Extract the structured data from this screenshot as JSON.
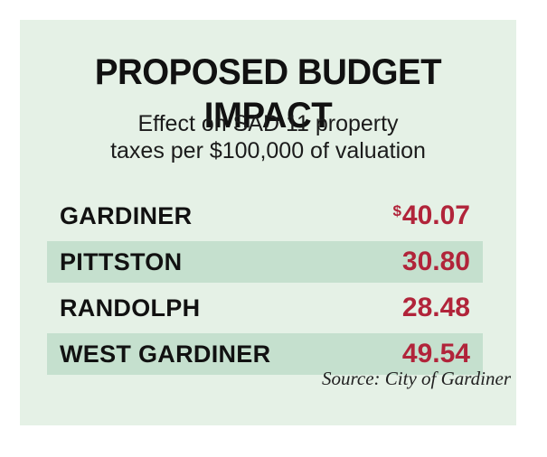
{
  "chart_data": {
    "type": "table",
    "title": "PROPOSED BUDGET IMPACT",
    "subtitle_lines": [
      "Effect on SAD 11 property",
      "taxes per $100,000 of valuation"
    ],
    "currency_symbol": "$",
    "rows": [
      {
        "label": "GARDINER",
        "value_text": "40.07",
        "value": 40.07,
        "show_currency": true
      },
      {
        "label": "PITTSTON",
        "value_text": "30.80",
        "value": 30.8,
        "show_currency": false
      },
      {
        "label": "RANDOLPH",
        "value_text": "28.48",
        "value": 28.48,
        "show_currency": false
      },
      {
        "label": "WEST GARDINER",
        "value_text": "49.54",
        "value": 49.54,
        "show_currency": false
      }
    ],
    "source": "Source: City of Gardiner"
  },
  "colors": {
    "panel_background": "#e5f1e6",
    "row_highlight": "#c5e0ce",
    "value_text": "#b1243a",
    "label_text": "#111111"
  }
}
